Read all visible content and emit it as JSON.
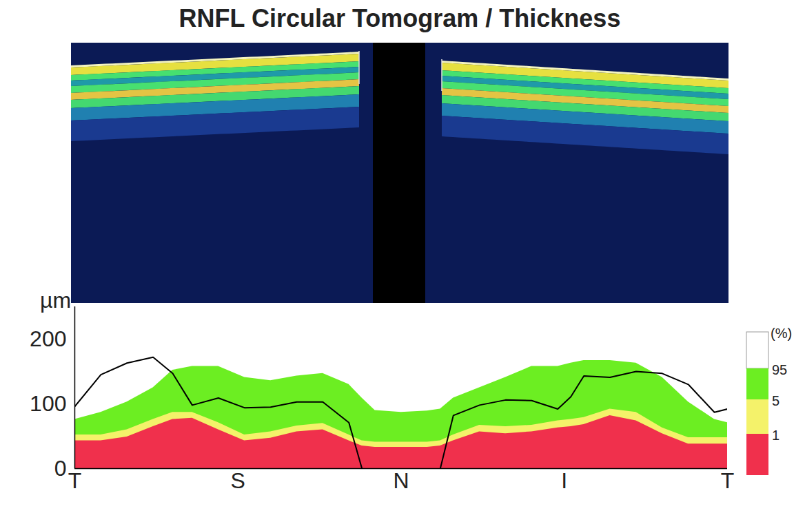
{
  "chart_data": {
    "type": "area",
    "title": "RNFL Circular Tomogram / Thickness",
    "y_label": "µm",
    "legend_title": "(%)",
    "legend": "right",
    "x": [
      0,
      4,
      8,
      12,
      15,
      18,
      22,
      26,
      30,
      34,
      38,
      42,
      44,
      46,
      50,
      54,
      56,
      58,
      62,
      66,
      70,
      74,
      76,
      78,
      82,
      86,
      90,
      94,
      98,
      100
    ],
    "xlim": [
      0,
      100
    ],
    "xticks": [
      {
        "value": 0,
        "label": "T"
      },
      {
        "value": 25,
        "label": "S"
      },
      {
        "value": 50,
        "label": "N"
      },
      {
        "value": 75,
        "label": "I"
      },
      {
        "value": 100,
        "label": "T"
      }
    ],
    "ylim": [
      0,
      250
    ],
    "yticks": [
      0,
      100,
      200
    ],
    "series": [
      {
        "name": "1",
        "type": "area",
        "color": "#f0304c",
        "values": [
          43,
          43,
          49,
          65,
          76,
          78,
          60,
          43,
          47,
          57,
          60,
          43,
          35,
          33,
          33,
          33,
          35,
          43,
          57,
          54,
          57,
          63,
          65,
          68,
          82,
          74,
          54,
          38,
          38,
          38
        ]
      },
      {
        "name": "5",
        "type": "area",
        "color": "#f4f26a",
        "values": [
          52,
          52,
          60,
          76,
          87,
          87,
          71,
          52,
          57,
          66,
          70,
          52,
          43,
          41,
          41,
          41,
          43,
          52,
          67,
          65,
          67,
          74,
          76,
          79,
          92,
          87,
          63,
          48,
          48,
          48
        ]
      },
      {
        "name": "95",
        "type": "area",
        "color": "#6cee22",
        "values": [
          76,
          87,
          103,
          125,
          152,
          158,
          158,
          141,
          136,
          143,
          147,
          130,
          109,
          90,
          87,
          89,
          92,
          109,
          125,
          141,
          158,
          158,
          163,
          167,
          167,
          163,
          141,
          103,
          76,
          71
        ]
      },
      {
        "type": "line",
        "color": "#000000",
        "values": [
          96,
          145,
          163,
          172,
          147,
          98,
          109,
          94,
          95,
          103,
          103,
          71,
          0,
          null,
          null,
          null,
          0,
          82,
          98,
          106,
          105,
          92,
          111,
          143,
          141,
          150,
          147,
          130,
          87,
          92
        ]
      }
    ]
  }
}
